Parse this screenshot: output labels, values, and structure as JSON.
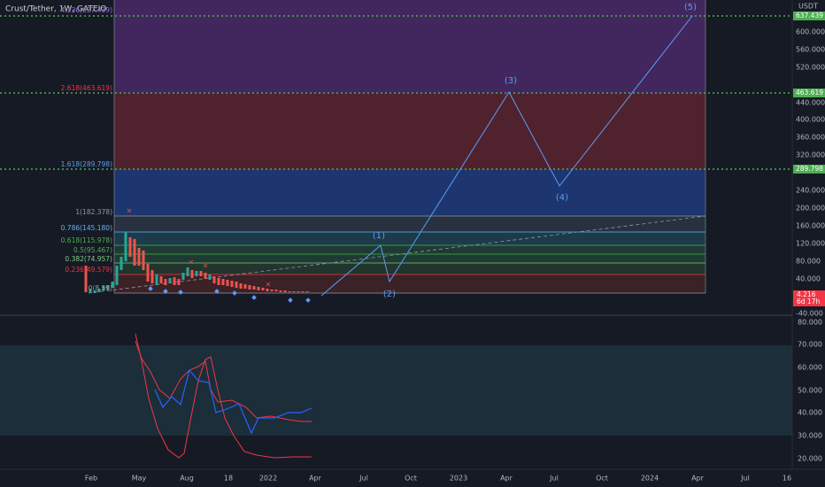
{
  "header": {
    "symbol": "Crust/Tether, 1W, GATEIO"
  },
  "price_axis": {
    "currency": "USDT",
    "labels": [
      "600.000",
      "560.000",
      "520.000",
      "440.000",
      "400.000",
      "360.000",
      "320.000",
      "240.000",
      "200.000",
      "160.000",
      "120.000",
      "80.000",
      "40.000",
      "-40.000"
    ]
  },
  "price_tags": {
    "green": [
      "637.439",
      "463.619",
      "289.798"
    ],
    "last_price": "4.216",
    "countdown": "6d 17h"
  },
  "fib_levels": [
    "4.236(637.439)",
    "2.618(463.619)",
    "1.618(289.798)",
    "1(182.378)",
    "0.786(145.180)",
    "0.618(115.978)",
    "0.5(95.467)",
    "0.382(74.957)",
    "0.236(49.579)",
    "0(8.59)"
  ],
  "waves": [
    "(1)",
    "(2)",
    "(3)",
    "(4)",
    "(5)"
  ],
  "oscillator_axis": [
    "80.000",
    "70.000",
    "60.000",
    "50.000",
    "40.000",
    "30.000",
    "20.000"
  ],
  "time_axis": [
    "Feb",
    "May",
    "Aug",
    "18",
    "2022",
    "Apr",
    "Jul",
    "Oct",
    "2023",
    "Apr",
    "Jul",
    "Oct",
    "2024",
    "Apr",
    "Jul",
    "16"
  ]
}
